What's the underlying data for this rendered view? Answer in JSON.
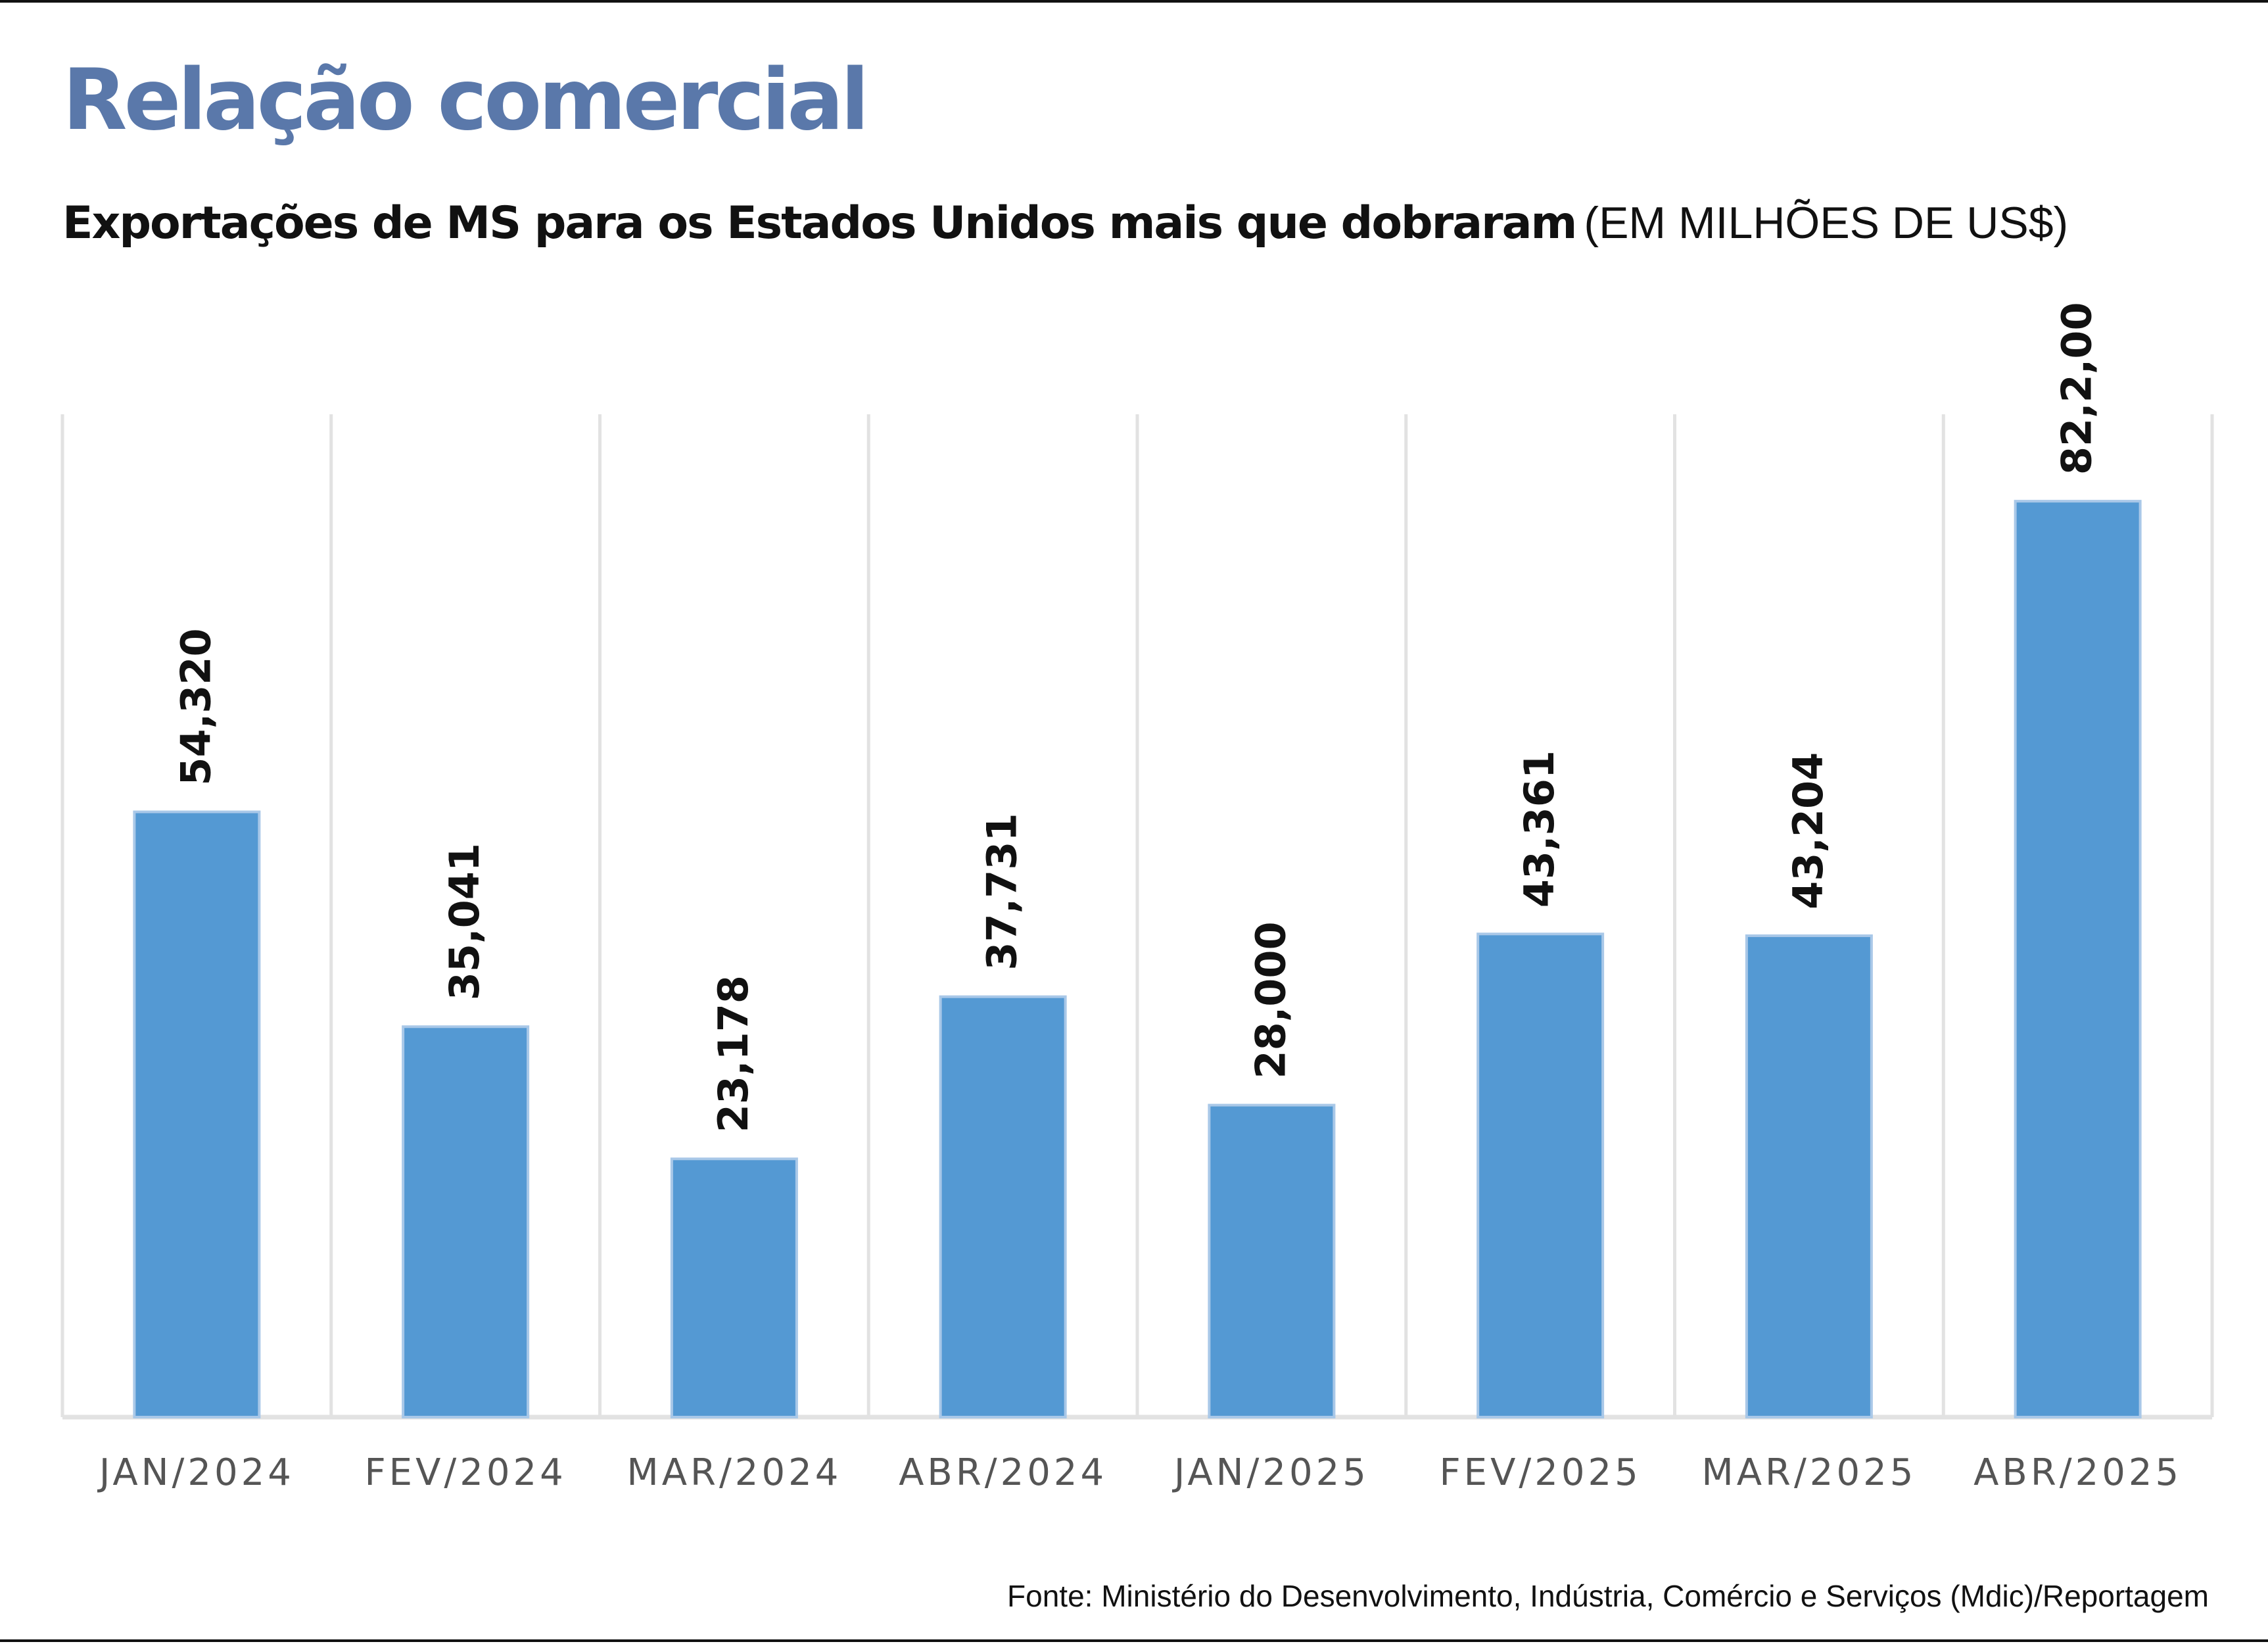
{
  "header": {
    "title": "Relação comercial",
    "subtitle_lead": "Exportações de MS para os Estados Unidos mais que dobraram",
    "subtitle_unit": "(EM MILHÕES DE US$)"
  },
  "footer": {
    "source": "Fonte: Ministério do Desenvolvimento, Indústria, Comércio e Serviços (Mdic)/Reportagem"
  },
  "colors": {
    "title": "#5a78aa",
    "bar": "#5499d3",
    "bar_edge": "#a9c8e8",
    "grid": "#e2e2e2",
    "text": "#111111"
  },
  "chart_data": {
    "type": "bar",
    "categories": [
      "JAN/2024",
      "FEV/2024",
      "MAR/2024",
      "ABR/2024",
      "JAN/2025",
      "FEV/2025",
      "MAR/2025",
      "ABR/2025"
    ],
    "values": [
      54.32,
      35.041,
      23.178,
      37.731,
      28.0,
      43.361,
      43.204,
      82.2
    ],
    "value_labels": [
      "54,320",
      "35,041",
      "23,178",
      "37,731",
      "28,000",
      "43,361",
      "43,204",
      "82,2,00"
    ],
    "ylim": [
      0,
      90
    ],
    "grid": "vertical-separators",
    "legend": "none"
  }
}
